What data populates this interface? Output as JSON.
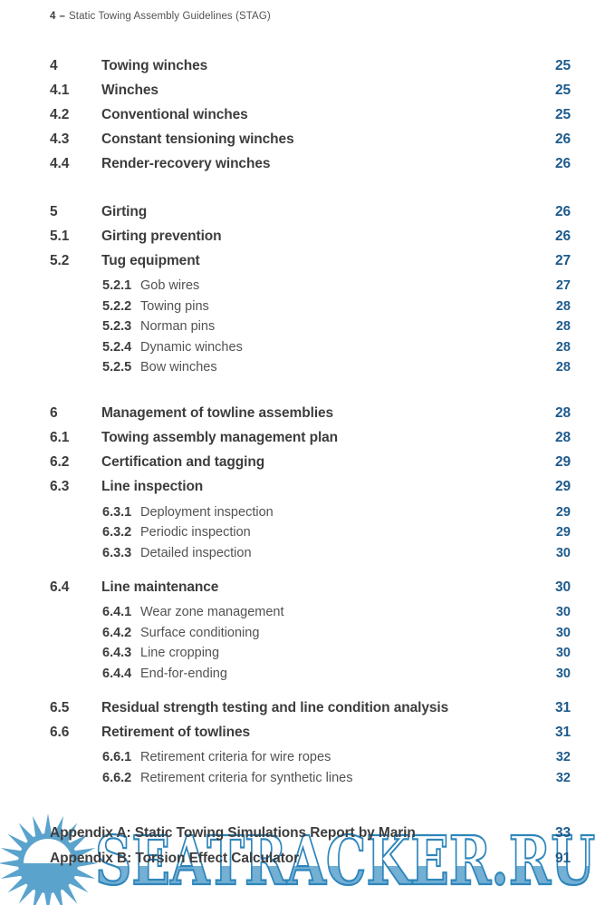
{
  "page_header": {
    "page_number": "4",
    "separator": "–",
    "title": "Static Towing Assembly Guidelines (STAG)"
  },
  "toc": {
    "entries": [
      {
        "number": "4",
        "title": "Towing winches",
        "page": "25",
        "level": 1,
        "gap": "none"
      },
      {
        "number": "4.1",
        "title": "Winches",
        "page": "25",
        "level": 2,
        "gap": "none"
      },
      {
        "number": "4.2",
        "title": "Conventional winches",
        "page": "25",
        "level": 2,
        "gap": "none"
      },
      {
        "number": "4.3",
        "title": "Constant tensioning winches",
        "page": "26",
        "level": 2,
        "gap": "none"
      },
      {
        "number": "4.4",
        "title": "Render-recovery winches",
        "page": "26",
        "level": 2,
        "gap": "none"
      },
      {
        "number": "5",
        "title": "Girting",
        "page": "26",
        "level": 1,
        "gap": "large"
      },
      {
        "number": "5.1",
        "title": "Girting prevention",
        "page": "26",
        "level": 2,
        "gap": "none"
      },
      {
        "number": "5.2",
        "title": "Tug equipment",
        "page": "27",
        "level": 2,
        "gap": "none"
      },
      {
        "number": "5.2.1",
        "title": "Gob wires",
        "page": "27",
        "level": 3,
        "gap": "none"
      },
      {
        "number": "5.2.2",
        "title": "Towing pins",
        "page": "28",
        "level": 3,
        "gap": "none"
      },
      {
        "number": "5.2.3",
        "title": "Norman pins",
        "page": "28",
        "level": 3,
        "gap": "none"
      },
      {
        "number": "5.2.4",
        "title": "Dynamic winches",
        "page": "28",
        "level": 3,
        "gap": "none"
      },
      {
        "number": "5.2.5",
        "title": "Bow winches",
        "page": "28",
        "level": 3,
        "gap": "none"
      },
      {
        "number": "6",
        "title": "Management of towline assemblies",
        "page": "28",
        "level": 1,
        "gap": "large"
      },
      {
        "number": "6.1",
        "title": "Towing assembly management plan",
        "page": "28",
        "level": 2,
        "gap": "none"
      },
      {
        "number": "6.2",
        "title": "Certification and tagging",
        "page": "29",
        "level": 2,
        "gap": "none"
      },
      {
        "number": "6.3",
        "title": "Line inspection",
        "page": "29",
        "level": 2,
        "gap": "none"
      },
      {
        "number": "6.3.1",
        "title": "Deployment inspection",
        "page": "29",
        "level": 3,
        "gap": "none"
      },
      {
        "number": "6.3.2",
        "title": "Periodic inspection",
        "page": "29",
        "level": 3,
        "gap": "none"
      },
      {
        "number": "6.3.3",
        "title": "Detailed inspection",
        "page": "30",
        "level": 3,
        "gap": "none"
      },
      {
        "number": "6.4",
        "title": "Line maintenance",
        "page": "30",
        "level": 2,
        "gap": "medium"
      },
      {
        "number": "6.4.1",
        "title": "Wear zone management",
        "page": "30",
        "level": 3,
        "gap": "none"
      },
      {
        "number": "6.4.2",
        "title": "Surface conditioning",
        "page": "30",
        "level": 3,
        "gap": "none"
      },
      {
        "number": "6.4.3",
        "title": "Line cropping",
        "page": "30",
        "level": 3,
        "gap": "none"
      },
      {
        "number": "6.4.4",
        "title": "End-for-ending",
        "page": "30",
        "level": 3,
        "gap": "none"
      },
      {
        "number": "6.5",
        "title": "Residual strength testing and line condition analysis",
        "page": "31",
        "level": 2,
        "gap": "medium"
      },
      {
        "number": "6.6",
        "title": "Retirement of towlines",
        "page": "31",
        "level": 2,
        "gap": "none"
      },
      {
        "number": "6.6.1",
        "title": "Retirement criteria for wire ropes",
        "page": "32",
        "level": 3,
        "gap": "none"
      },
      {
        "number": "6.6.2",
        "title": "Retirement criteria for synthetic lines",
        "page": "32",
        "level": 3,
        "gap": "none"
      }
    ]
  },
  "appendices": [
    {
      "title": "Appendix A: Static Towing Simulations Report by Marin",
      "page": "33"
    },
    {
      "title": "Appendix B: Torsion Effect Calculator",
      "page": "91"
    }
  ],
  "watermark": {
    "text": "SEATRACKER.RU",
    "logo": "sunburst-logo"
  },
  "colors": {
    "text_dark": "#3d3d3d",
    "text_light": "#525252",
    "page_number_blue": "#1e5b8d",
    "watermark_fill_blue": "#74afd4",
    "watermark_outline_blue": "#2e86bb",
    "watermark_ray_blue": "#5aa3cd",
    "watermark_top_fill": "#ffffff"
  }
}
